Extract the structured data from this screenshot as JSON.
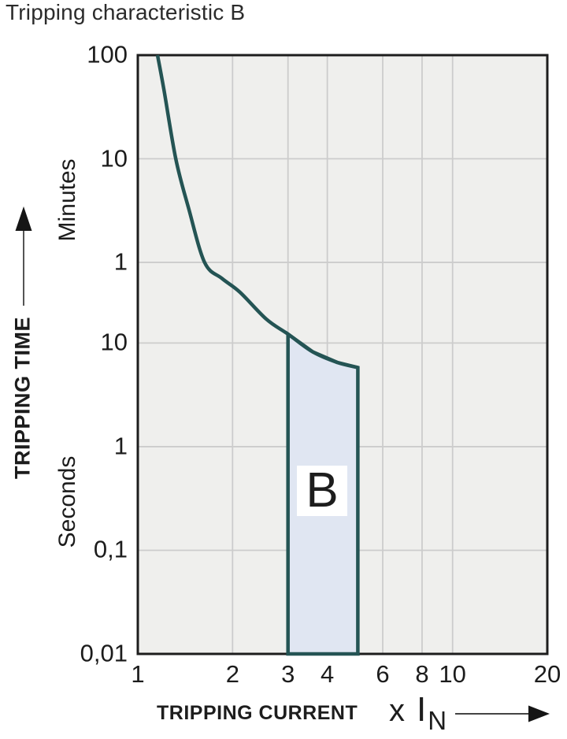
{
  "title": "Tripping characteristic B",
  "y_axis": {
    "title": "TRIPPING TIME",
    "unit_minutes": "Minutes",
    "unit_seconds": "Seconds"
  },
  "x_axis": {
    "title": "TRIPPING CURRENT",
    "factor": "x",
    "symbol": "I",
    "subscript": "N"
  },
  "colors": {
    "curve": "#245454",
    "region_fill": "#e0e6f2",
    "region_label_bg": "#ffffff",
    "plot_bg": "#efefed",
    "grid": "#cccccc",
    "border": "#1d1d1d",
    "text": "#1d1d1d"
  },
  "chart_data": {
    "type": "line",
    "title": "Tripping characteristic B",
    "xlabel": "TRIPPING CURRENT x IN",
    "ylabel": "TRIPPING TIME",
    "x_scale": "log",
    "y_scale": "log",
    "xlim": [
      1,
      20
    ],
    "ylim_seconds": [
      0.01,
      6000
    ],
    "x_ticks": [
      {
        "label": "1",
        "value": 1
      },
      {
        "label": "2",
        "value": 2
      },
      {
        "label": "3",
        "value": 3
      },
      {
        "label": "4",
        "value": 4
      },
      {
        "label": "6",
        "value": 6
      },
      {
        "label": "8",
        "value": 8
      },
      {
        "label": "10",
        "value": 10
      },
      {
        "label": "20",
        "value": 20
      }
    ],
    "y_ticks": [
      {
        "label": "100",
        "seconds": 6000,
        "unit": "min"
      },
      {
        "label": "10",
        "seconds": 600,
        "unit": "min"
      },
      {
        "label": "1",
        "seconds": 60,
        "unit": "min"
      },
      {
        "label": "10",
        "seconds": 10,
        "unit": "s"
      },
      {
        "label": "1",
        "seconds": 1,
        "unit": "s"
      },
      {
        "label": "0,1",
        "seconds": 0.1,
        "unit": "s"
      },
      {
        "label": "0,01",
        "seconds": 0.01,
        "unit": "s"
      }
    ],
    "x_gridlines": [
      2,
      3,
      4,
      6,
      8,
      10
    ],
    "y_gridlines_seconds": [
      600,
      60,
      10,
      1,
      0.1
    ],
    "series": [
      {
        "name": "B tripping characteristic curve",
        "points_x_in_t_seconds": [
          [
            1.155,
            6000
          ],
          [
            1.21,
            2800
          ],
          [
            1.32,
            600
          ],
          [
            1.45,
            200
          ],
          [
            1.63,
            60
          ],
          [
            1.85,
            42
          ],
          [
            2.11,
            31
          ],
          [
            2.56,
            17
          ],
          [
            3.0,
            12.2
          ],
          [
            3.6,
            8.2
          ],
          [
            4.3,
            6.5
          ],
          [
            5.0,
            5.8
          ]
        ]
      }
    ],
    "region": {
      "label": "B",
      "x_range": [
        3,
        5
      ],
      "polygon_x_in_t_seconds": [
        [
          3.0,
          12.2
        ],
        [
          3.6,
          8.2
        ],
        [
          4.3,
          6.5
        ],
        [
          5.0,
          5.8
        ],
        [
          5.0,
          0.01
        ],
        [
          3.0,
          0.01
        ]
      ]
    }
  }
}
